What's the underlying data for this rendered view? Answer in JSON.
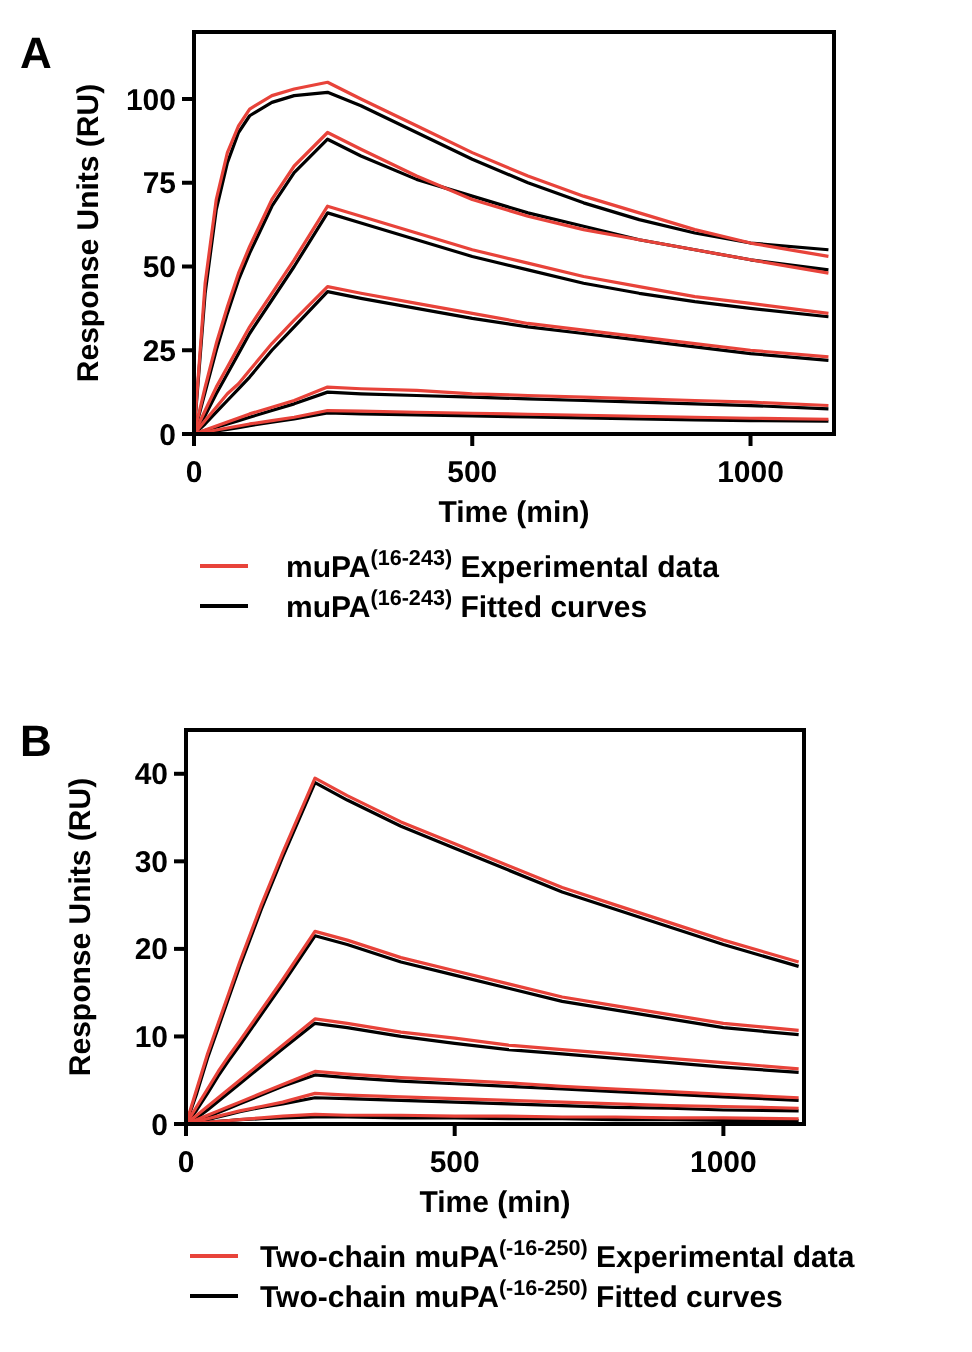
{
  "chart_data": [
    {
      "type": "line",
      "annotations": [
        "A"
      ],
      "xlabel": "Time (min)",
      "ylabel": "Response Units (RU)",
      "xlim": [
        0,
        1150
      ],
      "ylim": [
        0,
        120
      ],
      "xticks": [
        0,
        500,
        1000
      ],
      "yticks": [
        0,
        25,
        50,
        75,
        100
      ],
      "legend": "bottom",
      "x": [
        0,
        20,
        40,
        60,
        80,
        100,
        140,
        180,
        240,
        300,
        400,
        500,
        600,
        700,
        800,
        900,
        1000,
        1140
      ],
      "series": [
        {
          "name": "muPA$^{(16-243)}$ Experimental data",
          "color": "#e8433a",
          "values": [
            0,
            45,
            70,
            84,
            92,
            97,
            101,
            103,
            105,
            100,
            92,
            84,
            77,
            71,
            66,
            61,
            57,
            53
          ]
        },
        {
          "color": "#e8433a",
          "values": [
            0,
            14,
            27,
            38,
            48,
            56,
            70,
            80,
            90,
            85,
            77,
            70,
            65,
            61,
            58,
            55,
            52,
            48
          ]
        },
        {
          "color": "#e8433a",
          "values": [
            0,
            7,
            14,
            20,
            26,
            32,
            42,
            52,
            68,
            65,
            60,
            55,
            51,
            47,
            44,
            41,
            39,
            36
          ]
        },
        {
          "color": "#e8433a",
          "values": [
            0,
            4,
            8,
            12,
            15,
            19,
            27,
            34,
            44,
            42,
            39,
            36,
            33,
            31,
            29,
            27,
            25,
            23
          ]
        },
        {
          "color": "#e8433a",
          "values": [
            0,
            1.2,
            2.4,
            3.6,
            4.8,
            6,
            8,
            10,
            14,
            13.5,
            13,
            12,
            11.5,
            11,
            10.5,
            10,
            9.5,
            8.5
          ]
        },
        {
          "color": "#e8433a",
          "values": [
            0,
            0.6,
            1.2,
            1.8,
            2.4,
            3,
            4,
            5,
            7,
            6.8,
            6.5,
            6.2,
            5.9,
            5.6,
            5.3,
            5,
            4.7,
            4.4
          ]
        },
        {
          "name": "muPA$^{(16-243)}$ Fitted curves",
          "color": "#000000",
          "values": [
            0,
            42,
            67,
            81,
            90,
            95,
            99,
            101,
            102,
            98,
            90,
            82,
            75,
            69,
            64,
            60,
            57,
            55
          ]
        },
        {
          "color": "#000000",
          "values": [
            0,
            12.5,
            25,
            36,
            46,
            54,
            68,
            78,
            88,
            83,
            76,
            71,
            66,
            62,
            58,
            55,
            52,
            49
          ]
        },
        {
          "color": "#000000",
          "values": [
            0,
            5.5,
            12,
            18,
            24,
            30,
            40,
            50,
            66,
            63,
            58,
            53,
            49,
            45,
            42,
            39.5,
            37.5,
            35
          ]
        },
        {
          "color": "#000000",
          "values": [
            0,
            3,
            6.5,
            10,
            13.5,
            17,
            25,
            32,
            42.5,
            40.5,
            37.5,
            34.5,
            32,
            30,
            28,
            26,
            24,
            22
          ]
        },
        {
          "color": "#000000",
          "values": [
            0,
            1,
            2,
            3,
            4,
            5,
            7,
            9,
            12.5,
            12,
            11.5,
            11,
            10.5,
            10,
            9.5,
            9,
            8.5,
            7.5
          ]
        },
        {
          "color": "#000000",
          "values": [
            0,
            0.4,
            0.9,
            1.4,
            1.9,
            2.5,
            3.5,
            4.5,
            6.3,
            6,
            5.7,
            5.4,
            5.1,
            4.8,
            4.5,
            4.2,
            4,
            3.8
          ]
        }
      ]
    },
    {
      "type": "line",
      "annotations": [
        "B"
      ],
      "xlabel": "Time (min)",
      "ylabel": "Response Units (RU)",
      "xlim": [
        0,
        1150
      ],
      "ylim": [
        0,
        45
      ],
      "xticks": [
        0,
        500,
        1000
      ],
      "yticks": [
        0,
        10,
        20,
        30,
        40
      ],
      "legend": "bottom",
      "x": [
        0,
        20,
        40,
        60,
        80,
        100,
        140,
        180,
        240,
        300,
        400,
        500,
        600,
        700,
        800,
        900,
        1000,
        1140
      ],
      "series": [
        {
          "name": "Two-chain muPA$^{(-16-250)}$ Experimental data",
          "color": "#e8433a",
          "values": [
            0,
            4,
            8,
            11.5,
            15,
            18.5,
            25,
            31,
            39.5,
            37.5,
            34.5,
            32,
            29.5,
            27,
            25,
            23,
            21,
            18.5
          ]
        },
        {
          "color": "#e8433a",
          "values": [
            0,
            2,
            4,
            6,
            7.8,
            9.5,
            13,
            16.5,
            22,
            21,
            19,
            17.5,
            16,
            14.5,
            13.5,
            12.5,
            11.5,
            10.7
          ]
        },
        {
          "color": "#e8433a",
          "values": [
            0,
            1,
            2,
            3,
            4,
            5,
            7,
            9,
            12,
            11.5,
            10.5,
            9.8,
            9,
            8.5,
            8,
            7.5,
            7,
            6.3
          ]
        },
        {
          "color": "#e8433a",
          "values": [
            0,
            0.5,
            1,
            1.5,
            2,
            2.5,
            3.5,
            4.5,
            6,
            5.7,
            5.3,
            5,
            4.7,
            4.3,
            4,
            3.7,
            3.4,
            3
          ]
        },
        {
          "color": "#e8433a",
          "values": [
            0,
            0.3,
            0.6,
            0.9,
            1.2,
            1.5,
            2,
            2.5,
            3.5,
            3.3,
            3.1,
            2.9,
            2.7,
            2.5,
            2.3,
            2.1,
            2,
            1.8
          ]
        },
        {
          "color": "#e8433a",
          "values": [
            0,
            0.1,
            0.2,
            0.3,
            0.4,
            0.5,
            0.7,
            0.9,
            1.1,
            1,
            1,
            0.9,
            0.9,
            0.8,
            0.8,
            0.7,
            0.7,
            0.6
          ]
        },
        {
          "name": "Two-chain muPA$^{(-16-250)}$ Fitted curves",
          "color": "#000000",
          "values": [
            0,
            3.5,
            7.5,
            11,
            14.5,
            18,
            24.5,
            30.5,
            39,
            37,
            34,
            31.5,
            29,
            26.5,
            24.5,
            22.5,
            20.5,
            18
          ]
        },
        {
          "color": "#000000",
          "values": [
            0,
            1.6,
            3.5,
            5.5,
            7.3,
            9,
            12.5,
            16,
            21.5,
            20.5,
            18.5,
            17,
            15.5,
            14,
            13,
            12,
            11,
            10.2
          ]
        },
        {
          "color": "#000000",
          "values": [
            0,
            0.7,
            1.6,
            2.6,
            3.6,
            4.6,
            6.6,
            8.6,
            11.5,
            11,
            10,
            9.2,
            8.5,
            8,
            7.5,
            7,
            6.5,
            5.9
          ]
        },
        {
          "color": "#000000",
          "values": [
            0,
            0.3,
            0.8,
            1.3,
            1.8,
            2.3,
            3.3,
            4.3,
            5.6,
            5.3,
            4.9,
            4.6,
            4.3,
            4,
            3.7,
            3.4,
            3.1,
            2.7
          ]
        },
        {
          "color": "#000000",
          "values": [
            0,
            0.2,
            0.5,
            0.8,
            1.1,
            1.4,
            1.9,
            2.3,
            3,
            2.9,
            2.7,
            2.5,
            2.3,
            2.1,
            1.9,
            1.8,
            1.6,
            1.5
          ]
        },
        {
          "color": "#000000",
          "values": [
            0,
            0.1,
            0.2,
            0.3,
            0.4,
            0.5,
            0.6,
            0.7,
            0.8,
            0.8,
            0.7,
            0.7,
            0.6,
            0.6,
            0.5,
            0.5,
            0.4,
            0.4
          ]
        }
      ]
    }
  ]
}
